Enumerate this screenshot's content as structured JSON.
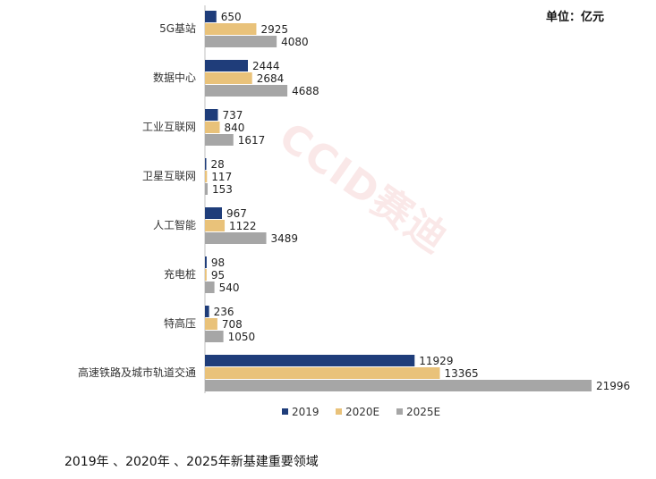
{
  "unit_label": "单位：亿元",
  "caption": "2019年 、2020年 、2025年新基建重要领域",
  "watermark": "CCID赛迪",
  "chart_data": {
    "type": "bar",
    "orientation": "horizontal",
    "categories": [
      "5G基站",
      "数据中心",
      "工业互联网",
      "卫星互联网",
      "人工智能",
      "充电桩",
      "特高压",
      "高速铁路及城市轨道交通"
    ],
    "series": [
      {
        "name": "2019",
        "color": "#1f3d7a",
        "values": [
          650,
          2444,
          737,
          28,
          967,
          98,
          236,
          11929
        ]
      },
      {
        "name": "2020E",
        "color": "#e9c27a",
        "values": [
          2925,
          2684,
          840,
          117,
          1122,
          95,
          708,
          13365
        ]
      },
      {
        "name": "2025E",
        "color": "#a6a6a6",
        "values": [
          4080,
          4688,
          1617,
          153,
          3489,
          540,
          1050,
          21996
        ]
      }
    ],
    "xlim": [
      0,
      21996
    ],
    "legend_position": "bottom",
    "grid": false,
    "data_labels": true
  }
}
